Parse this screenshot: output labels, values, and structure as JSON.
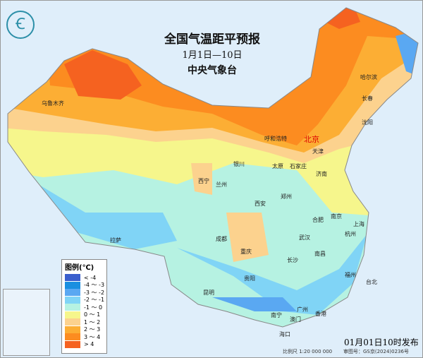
{
  "header": {
    "title": "全国气温距平预报",
    "period": "1月1日—10日",
    "issuer": "中央气象台"
  },
  "logo": {
    "icon": "cma-logo"
  },
  "legend": {
    "title": "图例(℃)",
    "items": [
      {
        "label": "< -4",
        "color": "#3a5fcd"
      },
      {
        "label": "-4 ～ -3",
        "color": "#1a8fe0"
      },
      {
        "label": "-3 ～ -2",
        "color": "#5aa8f2"
      },
      {
        "label": "-2 ～ -1",
        "color": "#80d4f6"
      },
      {
        "label": "-1 ～ 0",
        "color": "#b6f2e2"
      },
      {
        "label": "0 ～ 1",
        "color": "#f6f68c"
      },
      {
        "label": "1 ～ 2",
        "color": "#fcd28e"
      },
      {
        "label": "2 ～ 3",
        "color": "#fcae34"
      },
      {
        "label": "3 ～ 4",
        "color": "#fc8c20"
      },
      {
        "label": "> 4",
        "color": "#f56220"
      }
    ]
  },
  "cities": [
    "乌鲁木齐",
    "哈尔滨",
    "长春",
    "沈阳",
    "北京",
    "天津",
    "呼和浩特",
    "银川",
    "太原",
    "石家庄",
    "济南",
    "西宁",
    "兰州",
    "西安",
    "郑州",
    "拉萨",
    "成都",
    "重庆",
    "合肥",
    "南京",
    "上海",
    "杭州",
    "武汉",
    "长沙",
    "南昌",
    "贵阳",
    "福州",
    "台北",
    "昆明",
    "南宁",
    "广州",
    "澳门",
    "香港",
    "海口"
  ],
  "footer": {
    "issued": "01月01日10时发布",
    "scale": "比例尺 1:20 000 000",
    "review": "审图号：GS京(2024)0236号"
  }
}
